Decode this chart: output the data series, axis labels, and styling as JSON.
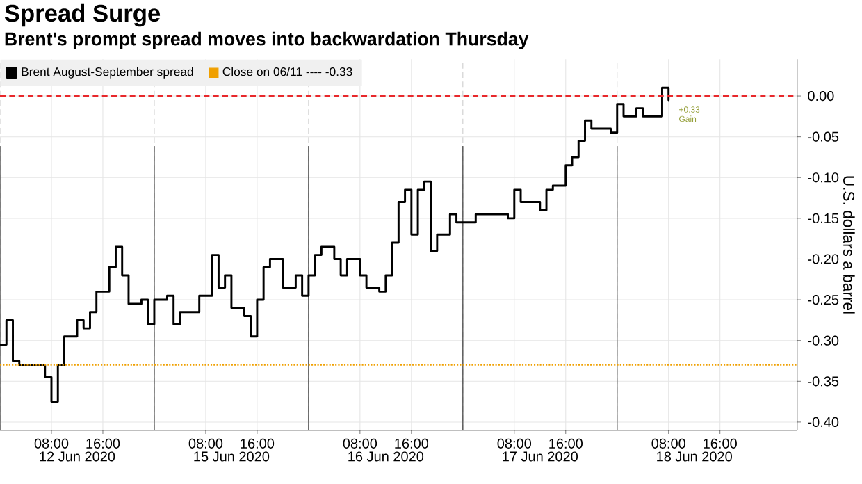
{
  "chart_data": {
    "type": "step",
    "title": "Spread Surge",
    "subtitle": "Brent's prompt spread moves into backwardation Thursday",
    "ylabel": "U.S. dollars a barrel",
    "categories": [
      null,
      null,
      null,
      null,
      null,
      null,
      null,
      null,
      "08:00",
      null,
      null,
      null,
      "12 Jun 2020",
      null,
      null,
      null,
      "16:00",
      null,
      null,
      null,
      null,
      null,
      null,
      null,
      null,
      null,
      null,
      null,
      null,
      null,
      null,
      null,
      "08:00",
      null,
      null,
      null,
      "15 Jun 2020",
      null,
      null,
      null,
      "16:00",
      null,
      null,
      null,
      null,
      null,
      null,
      null,
      null,
      null,
      null,
      null,
      null,
      null,
      null,
      null,
      "08:00",
      null,
      null,
      null,
      "16 Jun 2020",
      null,
      null,
      null,
      "16:00",
      null,
      null,
      null,
      null,
      null,
      null,
      null,
      null,
      null,
      null,
      null,
      null,
      null,
      null,
      null,
      "08:00",
      null,
      null,
      null,
      "17 Jun 2020",
      null,
      null,
      null,
      "16:00",
      null,
      null,
      null,
      null,
      null,
      null,
      null,
      null,
      null,
      null,
      null,
      null,
      null,
      null,
      null,
      "08:00",
      null,
      null,
      null,
      "18 Jun 2020",
      null,
      null,
      null,
      "16:00",
      null,
      null,
      null,
      null,
      null,
      null,
      null,
      null,
      null,
      null,
      null
    ],
    "series": [
      {
        "name": "Brent August-September spread",
        "color": "#000000",
        "values": [
          -0.305,
          -0.275,
          -0.325,
          -0.33,
          -0.33,
          -0.33,
          -0.33,
          -0.345,
          -0.375,
          -0.33,
          -0.295,
          -0.295,
          -0.275,
          -0.285,
          -0.265,
          -0.24,
          -0.24,
          -0.21,
          -0.185,
          -0.22,
          -0.255,
          -0.255,
          -0.25,
          -0.28,
          -0.25,
          -0.25,
          -0.245,
          -0.28,
          -0.265,
          -0.265,
          -0.265,
          -0.245,
          -0.245,
          -0.195,
          -0.235,
          -0.22,
          -0.26,
          -0.26,
          -0.27,
          -0.295,
          -0.25,
          -0.21,
          -0.2,
          -0.2,
          -0.235,
          -0.235,
          -0.22,
          -0.245,
          -0.22,
          -0.195,
          -0.185,
          -0.185,
          -0.2,
          -0.22,
          -0.2,
          -0.2,
          -0.22,
          -0.235,
          -0.235,
          -0.24,
          -0.22,
          -0.18,
          -0.13,
          -0.115,
          -0.17,
          -0.115,
          -0.105,
          -0.19,
          -0.17,
          -0.17,
          -0.145,
          -0.155,
          -0.155,
          -0.155,
          -0.145,
          -0.145,
          -0.145,
          -0.145,
          -0.145,
          -0.15,
          -0.115,
          -0.13,
          -0.13,
          -0.13,
          -0.14,
          -0.115,
          -0.11,
          -0.11,
          -0.085,
          -0.075,
          -0.055,
          -0.03,
          -0.04,
          -0.04,
          -0.04,
          -0.045,
          -0.01,
          -0.025,
          -0.025,
          -0.015,
          -0.025,
          -0.025,
          -0.025,
          0.01,
          -0.005,
          null,
          null,
          null,
          null,
          null,
          null,
          null,
          null,
          null,
          null,
          null,
          null,
          null,
          null,
          null,
          null,
          null,
          null,
          null
        ]
      }
    ],
    "ylim": [
      -0.41,
      0.045
    ],
    "yticks": [
      {
        "value": 0,
        "label": "0.00"
      },
      {
        "value": -0.05,
        "label": "-0.05"
      },
      {
        "value": -0.1,
        "label": "-0.10"
      },
      {
        "value": -0.15,
        "label": "-0.15"
      },
      {
        "value": -0.2,
        "label": "-0.20"
      },
      {
        "value": -0.25,
        "label": "-0.25"
      },
      {
        "value": -0.3,
        "label": "-0.30"
      },
      {
        "value": -0.35,
        "label": "-0.35"
      },
      {
        "value": -0.4,
        "label": "-0.40"
      }
    ],
    "ref_lines": [
      {
        "axis": "y",
        "value": 0,
        "color": "#e8282b",
        "line_style": "dashed"
      },
      {
        "axis": "y",
        "value": -0.33,
        "label": "Close on 06/11 ---- -0.33",
        "color": "#f0a000",
        "line_style": "dotted"
      }
    ],
    "annotations": [
      "+0.33 Gain"
    ],
    "grid": true,
    "legend": "top left",
    "marker": "none",
    "line_style": "solid"
  }
}
